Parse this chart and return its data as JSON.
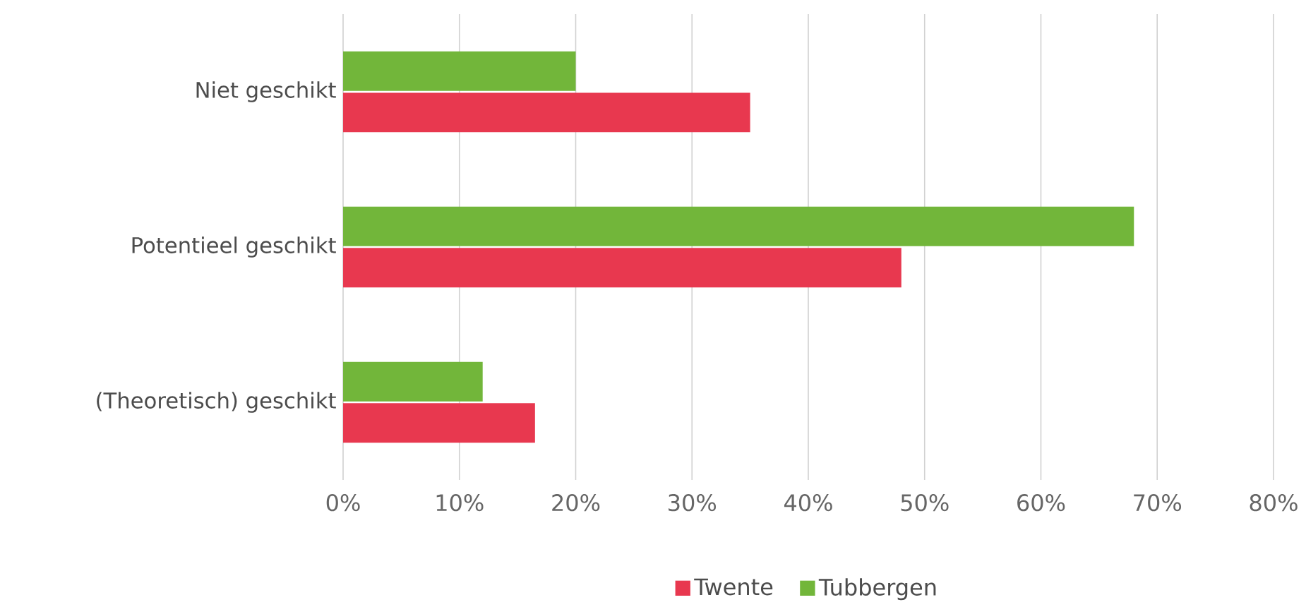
{
  "chart_data": {
    "type": "bar",
    "orientation": "horizontal",
    "categories": [
      "Niet geschikt",
      "Potentieel geschikt",
      "(Theoretisch) geschikt"
    ],
    "series": [
      {
        "name": "Twente",
        "color": "#e8384f",
        "values": [
          35,
          48,
          16.5
        ]
      },
      {
        "name": "Tubbergen",
        "color": "#72b63a",
        "values": [
          20,
          68,
          12
        ]
      }
    ],
    "xlim": [
      0,
      80
    ],
    "xticks": [
      {
        "value": 0,
        "label": "0%"
      },
      {
        "value": 10,
        "label": "10%"
      },
      {
        "value": 20,
        "label": "20%"
      },
      {
        "value": 30,
        "label": "30%"
      },
      {
        "value": 40,
        "label": "40%"
      },
      {
        "value": 50,
        "label": "50%"
      },
      {
        "value": 60,
        "label": "60%"
      },
      {
        "value": 70,
        "label": "70%"
      },
      {
        "value": 80,
        "label": "80%"
      }
    ],
    "grid": "x",
    "legend": "bottom"
  }
}
